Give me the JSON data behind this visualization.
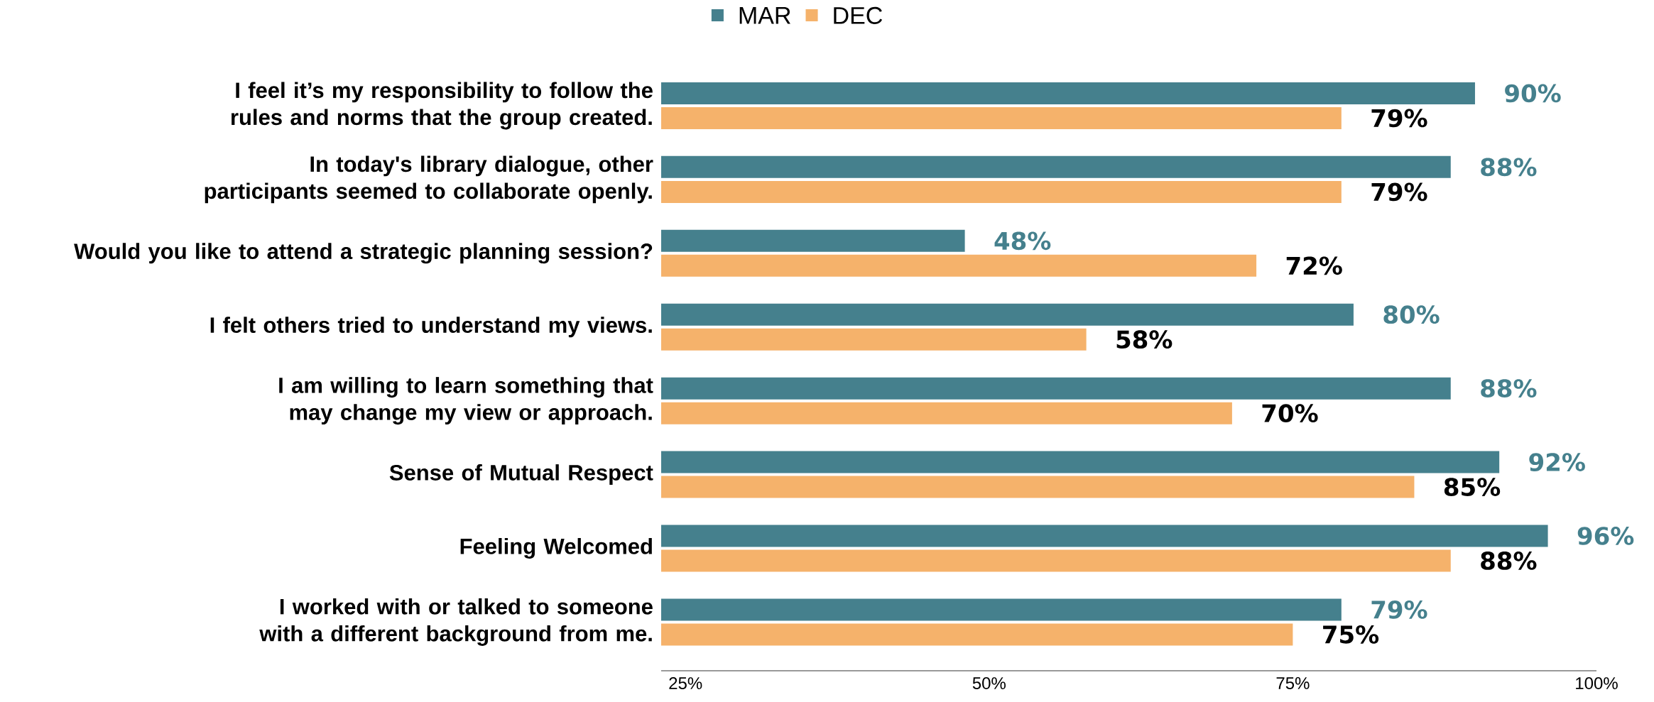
{
  "chart_data": {
    "type": "bar",
    "orientation": "horizontal",
    "categories": [
      "I feel it’s my responsibility to follow the rules and norms that the group created.",
      "In today's library dialogue, other participants seemed to collaborate openly.",
      "Would you like to attend a strategic planning session?",
      "I felt others tried to understand my views.",
      "I am willing to learn something that may change my view or approach.",
      "Sense of Mutual Respect",
      "Feeling Welcomed",
      "I worked with or talked to someone with a different background from me."
    ],
    "series": [
      {
        "name": "MAR",
        "color": "#45808d",
        "values": [
          90,
          88,
          48,
          80,
          88,
          92,
          96,
          79
        ],
        "value_labels": [
          "90%",
          "88%",
          "48%",
          "80%",
          "88%",
          "92%",
          "96%",
          "79%"
        ]
      },
      {
        "name": "DEC",
        "color": "#f5b26b",
        "values": [
          79,
          79,
          72,
          58,
          70,
          85,
          88,
          75
        ],
        "value_labels": [
          "79%",
          "79%",
          "72%",
          "58%",
          "70%",
          "85%",
          "88%",
          "75%"
        ]
      }
    ],
    "xlim": [
      23,
      100
    ],
    "xticks": [
      {
        "value": 25,
        "label": "25%"
      },
      {
        "value": 50,
        "label": "50%"
      },
      {
        "value": 75,
        "label": "75%"
      },
      {
        "value": 100,
        "label": "100%"
      }
    ],
    "legend": "top",
    "grid": false
  }
}
